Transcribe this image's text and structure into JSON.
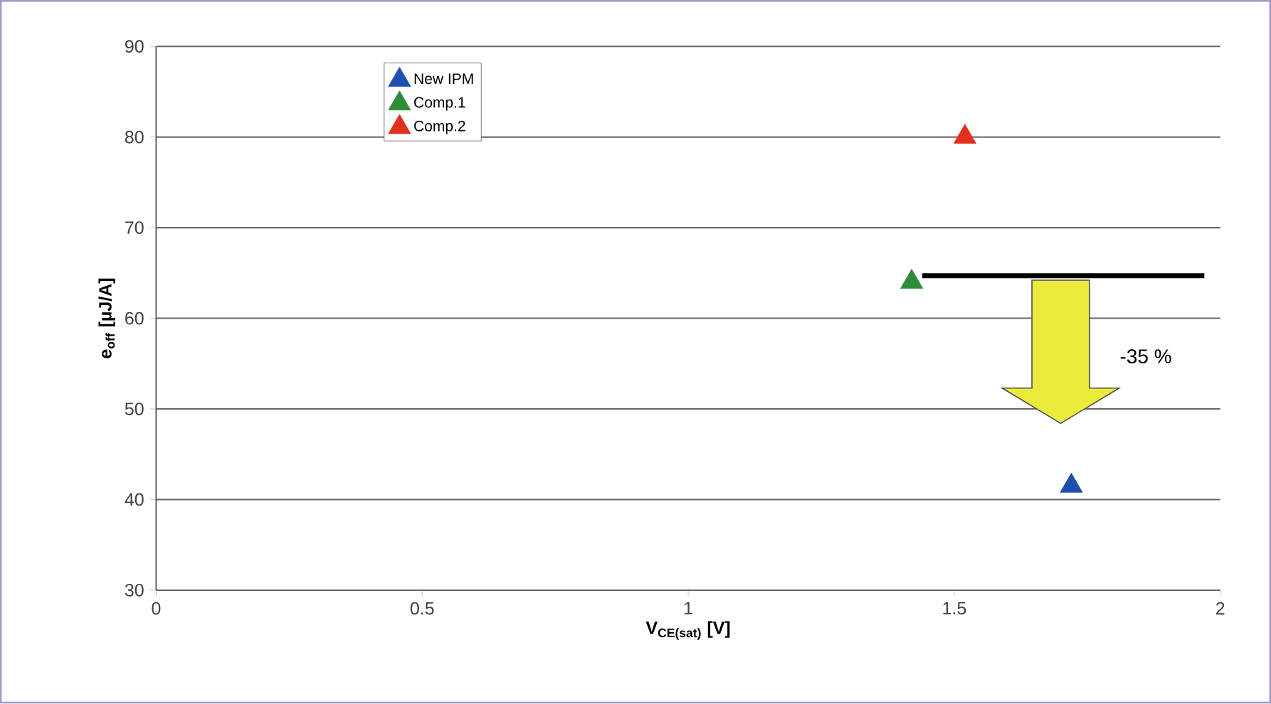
{
  "chart_data": {
    "type": "scatter",
    "xlabel": "V$_{CE(sat)}$ [V]",
    "ylabel": "e$_{off}$ [µJ/A]",
    "xlim": [
      0,
      2
    ],
    "xticks": [
      0,
      0.5,
      1,
      1.5,
      2
    ],
    "ylim": [
      30,
      90
    ],
    "yticks": [
      30,
      40,
      50,
      60,
      70,
      80,
      90
    ],
    "grid": "y",
    "legend": "top left",
    "series": [
      {
        "name": "New IPM",
        "color": "#1f4fb0",
        "marker": "triangle",
        "x": [
          1.72
        ],
        "values": [
          41.5
        ]
      },
      {
        "name": "Comp.1",
        "color": "#2e8b3a",
        "marker": "triangle",
        "x": [
          1.42
        ],
        "values": [
          64
        ]
      },
      {
        "name": "Comp.2",
        "color": "#e0301e",
        "marker": "triangle",
        "x": [
          1.52
        ],
        "values": [
          80
        ]
      },
      {
        "type": "line",
        "color": "#000000",
        "marker": "none",
        "x": [
          1.44,
          1.97
        ],
        "values": [
          64.7,
          64.7
        ]
      }
    ],
    "annotations": [
      "-35 %"
    ]
  }
}
